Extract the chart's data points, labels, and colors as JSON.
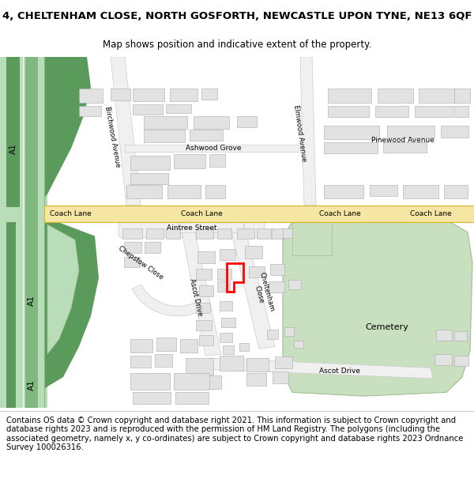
{
  "title_line1": "4, CHELTENHAM CLOSE, NORTH GOSFORTH, NEWCASTLE UPON TYNE, NE13 6QF",
  "title_line2": "Map shows position and indicative extent of the property.",
  "footer_text": "Contains OS data © Crown copyright and database right 2021. This information is subject to Crown copyright and database rights 2023 and is reproduced with the permission of HM Land Registry. The polygons (including the associated geometry, namely x, y co-ordinates) are subject to Crown copyright and database rights 2023 Ordnance Survey 100026316.",
  "map_bg": "#ffffff",
  "road_yellow": "#f5e6a3",
  "road_yellow_border": "#d4b830",
  "road_white": "#f0f0f0",
  "road_white_border": "#cccccc",
  "building_fill": "#e2e2e2",
  "building_edge": "#aaaaaa",
  "green_fill": "#c8dfc0",
  "green_edge": "#a0c090",
  "mway_dark": "#5a9a5a",
  "mway_light": "#b8ddb8",
  "mway_strip": "#80b880",
  "red_poly": "#ff0000",
  "text_dark": "#333333",
  "title_fontsize": 9.5,
  "sub_fontsize": 8.5,
  "footer_fontsize": 7.2,
  "road_label_size": 6.5,
  "small_label_size": 6.0
}
